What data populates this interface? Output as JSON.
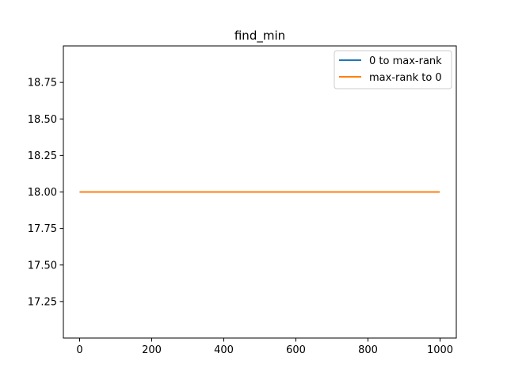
{
  "chart_data": {
    "type": "line",
    "title": "find_min",
    "xlabel": "",
    "ylabel": "",
    "xlim": [
      -45,
      1045
    ],
    "ylim": [
      17.0,
      19.0
    ],
    "xticks": [
      0,
      200,
      400,
      600,
      800,
      1000
    ],
    "yticks": [
      17.25,
      17.5,
      17.75,
      18.0,
      18.25,
      18.5,
      18.75
    ],
    "ytick_labels": [
      "17.25",
      "17.50",
      "17.75",
      "18.00",
      "18.25",
      "18.50",
      "18.75"
    ],
    "grid": false,
    "legend_position": "top-right",
    "series": [
      {
        "name": "0 to max-rank",
        "color": "#1f77b4",
        "x": [
          0,
          999
        ],
        "y": [
          18.0,
          18.0
        ]
      },
      {
        "name": "max-rank to 0",
        "color": "#ff7f0e",
        "x": [
          0,
          999
        ],
        "y": [
          18.0,
          18.0
        ]
      }
    ]
  }
}
